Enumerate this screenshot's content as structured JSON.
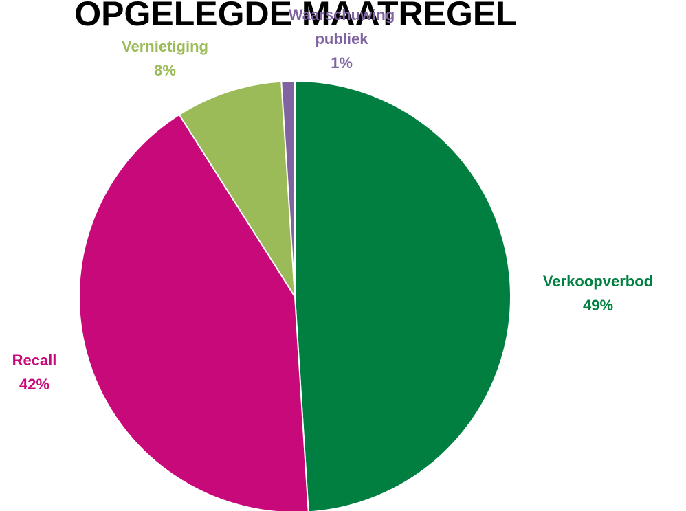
{
  "chart_data": {
    "type": "pie",
    "title": "OPGELEGDE MAATREGEL",
    "categories": [
      "Verkoopverbod",
      "Recall",
      "Vernietiging",
      "Waarschuwing publiek"
    ],
    "values": [
      49,
      42,
      8,
      1
    ],
    "value_labels": [
      "49%",
      "42%",
      "8%",
      "1%"
    ],
    "colors": [
      "#007f41",
      "#c8097a",
      "#9bbb59",
      "#8064a2"
    ]
  }
}
